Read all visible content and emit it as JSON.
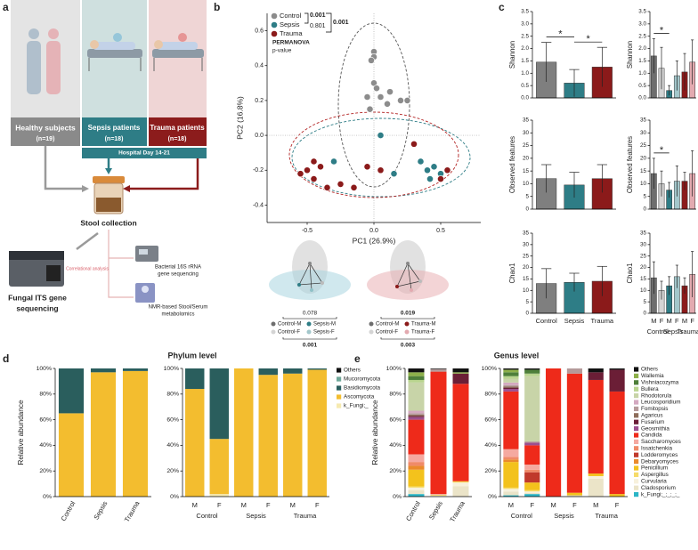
{
  "panel_labels": [
    "a",
    "b",
    "c",
    "d",
    "e"
  ],
  "panel_a": {
    "groups": [
      {
        "name": "Healthy subjects",
        "n": "(n=19)"
      },
      {
        "name": "Sepsis patients",
        "n": "(n=18)"
      },
      {
        "name": "Trauma patients",
        "n": "(n=18)"
      }
    ],
    "timepoint": "Hospital Day 14-21",
    "sample": "Stool collection",
    "method": [
      "Fungal ITS gene",
      "sequencing"
    ],
    "link": "Correlational analysis",
    "other_methods": [
      [
        "Bacterial 16S rRNA",
        "gene sequencing"
      ],
      [
        "NMR-based Stool/Serum",
        "metabolomics"
      ]
    ]
  },
  "panel_b_insets": [
    {
      "groups": [
        "Control-M",
        "Control-F",
        "Sepsis-M",
        "Sepsis-F"
      ],
      "pvalues": [
        "0.078",
        "0.001"
      ]
    },
    {
      "groups": [
        "Control-M",
        "Control-F",
        "Trauma-M",
        "Trauma-F"
      ],
      "pvalues": [
        "0.019",
        "0.003"
      ]
    }
  ],
  "chart_data": [
    {
      "type": "scatter",
      "xlabel": "PC1 (26.9%)",
      "ylabel": "PC2 (16.8%)",
      "xlim": [
        -0.8,
        0.8
      ],
      "ylim": [
        -0.5,
        0.7
      ],
      "xticks": [
        -0.5,
        {
          "value": 0,
          "label": "0.0"
        },
        0.5
      ],
      "yticks": [
        -0.4,
        -0.2,
        {
          "value": 0,
          "label": "0.0"
        },
        0.2,
        0.4,
        0.6
      ],
      "permanova": {
        "label": "PERMANOVA",
        "sublabel": "p-value",
        "pvalues": [
          "0.001",
          "0.801",
          "0.001"
        ]
      },
      "series": [
        {
          "name": "Control",
          "color": "#8c8c8c",
          "x": [
            0,
            0,
            -0.02,
            0,
            0.02,
            -0.05,
            0.05,
            0.12,
            0.1,
            -0.03,
            0.2,
            0.25
          ],
          "y": [
            0.48,
            0.45,
            0.43,
            0.3,
            0.27,
            0.22,
            0.22,
            0.25,
            0.18,
            0.15,
            0.2,
            0.2
          ]
        },
        {
          "name": "Sepsis",
          "color": "#2e7d86",
          "x": [
            0.05,
            0.4,
            0.45,
            0.5,
            0.35,
            0.42,
            -0.3,
            0.15
          ],
          "y": [
            0,
            -0.2,
            -0.18,
            -0.22,
            -0.15,
            -0.25,
            -0.15,
            -0.22
          ]
        },
        {
          "name": "Trauma",
          "color": "#8b1a1a",
          "x": [
            -0.5,
            -0.45,
            -0.55,
            -0.4,
            -0.35,
            -0.25,
            -0.15,
            -0.05,
            0.05,
            0.3,
            0.5,
            0.55,
            -0.45
          ],
          "y": [
            -0.2,
            -0.25,
            -0.22,
            -0.18,
            -0.3,
            -0.28,
            -0.3,
            -0.18,
            -0.2,
            -0.05,
            -0.25,
            -0.2,
            -0.15
          ]
        }
      ]
    },
    {
      "type": "bar",
      "ylabel": "Shannon",
      "values": [
        1.45,
        0.6,
        1.25
      ],
      "errors": [
        0.8,
        0.55,
        0.8
      ],
      "colors": [
        "#7f7f7f",
        "#2e7d86",
        "#8b1a1a"
      ],
      "ylim": [
        0,
        3.5
      ],
      "yticks": [
        {
          "value": 0,
          "label": "0.0"
        },
        0.5,
        {
          "value": 1,
          "label": "1.0"
        },
        1.5,
        {
          "value": 2,
          "label": "2.0"
        },
        2.5,
        {
          "value": 3,
          "label": "3.0"
        },
        3.5
      ],
      "annotations": [
        {
          "text": "*",
          "from": 0,
          "to": 1
        },
        {
          "text": "*",
          "from": 1,
          "to": 2
        }
      ]
    },
    {
      "type": "bar",
      "ylabel": "Shannon",
      "values": [
        1.7,
        1.2,
        0.3,
        0.9,
        1.05,
        1.45
      ],
      "errors": [
        0.7,
        0.85,
        0.2,
        0.6,
        0.75,
        0.9
      ],
      "colors": [
        "#6e6e6e",
        "#d4d4d4",
        "#2e7d86",
        "#a3c7cb",
        "#8b1a1a",
        "#e3aab0"
      ],
      "ylim": [
        0,
        3.5
      ],
      "yticks": [
        {
          "value": 0,
          "label": "0.0"
        },
        0.5,
        {
          "value": 1,
          "label": "1.0"
        },
        1.5,
        {
          "value": 2,
          "label": "2.0"
        },
        2.5,
        {
          "value": 3,
          "label": "3.0"
        },
        3.5
      ],
      "annotations": [
        {
          "text": "*",
          "from": 0,
          "to": 2
        }
      ]
    },
    {
      "type": "bar",
      "ylabel": "Observed features",
      "values": [
        12,
        9.5,
        12
      ],
      "errors": [
        5.5,
        5,
        5.5
      ],
      "colors": [
        "#7f7f7f",
        "#2e7d86",
        "#8b1a1a"
      ],
      "ylim": [
        0,
        35
      ],
      "yticks": [
        0,
        5,
        10,
        15,
        20,
        25,
        30,
        35
      ]
    },
    {
      "type": "bar",
      "ylabel": "Observed features",
      "values": [
        14,
        10,
        7.5,
        11,
        11,
        14
      ],
      "errors": [
        6,
        5,
        3,
        6,
        3.5,
        9
      ],
      "colors": [
        "#6e6e6e",
        "#d4d4d4",
        "#2e7d86",
        "#a3c7cb",
        "#8b1a1a",
        "#e3aab0"
      ],
      "ylim": [
        0,
        35
      ],
      "yticks": [
        0,
        5,
        10,
        15,
        20,
        25,
        30,
        35
      ],
      "annotations": [
        {
          "text": "*",
          "from": 0,
          "to": 2
        }
      ]
    },
    {
      "type": "bar",
      "ylabel": "Chao1",
      "categories": [
        "Control",
        "Sepsis",
        "Trauma"
      ],
      "values": [
        13,
        13.5,
        14
      ],
      "errors": [
        6.5,
        4,
        6.5
      ],
      "colors": [
        "#7f7f7f",
        "#2e7d86",
        "#8b1a1a"
      ],
      "ylim": [
        0,
        35
      ],
      "yticks": [
        0,
        5,
        10,
        15,
        20,
        25,
        30,
        35
      ]
    },
    {
      "type": "bar",
      "ylabel": "Chao1",
      "categories": [
        "M",
        "F",
        "M",
        "F",
        "M",
        "F"
      ],
      "groups": [
        "Control",
        "Sepsis",
        "Trauma"
      ],
      "values": [
        15.5,
        10,
        12,
        16,
        12,
        17
      ],
      "errors": [
        7,
        4,
        4,
        5,
        3.5,
        10
      ],
      "colors": [
        "#6e6e6e",
        "#d4d4d4",
        "#2e7d86",
        "#a3c7cb",
        "#8b1a1a",
        "#e3aab0"
      ],
      "ylim": [
        0,
        35
      ],
      "yticks": [
        0,
        5,
        10,
        15,
        20,
        25,
        30,
        35
      ]
    },
    {
      "type": "stacked_bar",
      "title": "Phylum level",
      "ylabel": "Relative abundance",
      "categories": [
        "Control",
        "Sepsis",
        "Trauma"
      ],
      "ylim": [
        0,
        100
      ],
      "yticks": [
        {
          "value": 0,
          "label": "0%"
        },
        {
          "value": 20,
          "label": "20%"
        },
        {
          "value": 40,
          "label": "40%"
        },
        {
          "value": 60,
          "label": "60%"
        },
        {
          "value": 80,
          "label": "80%"
        },
        {
          "value": 100,
          "label": "100%"
        }
      ],
      "series": [
        {
          "name": "k_Fungi;_",
          "color": "#f6eab0",
          "values": [
            0,
            0,
            0
          ]
        },
        {
          "name": "Ascomycota",
          "color": "#f3bd2f",
          "values": [
            65,
            97,
            98
          ]
        },
        {
          "name": "Basidiomycota",
          "color": "#2a5e5d",
          "values": [
            35,
            3,
            2
          ]
        },
        {
          "name": "Mucoromycota",
          "color": "#6fa89a",
          "values": [
            0,
            0,
            0
          ]
        },
        {
          "name": "Others",
          "color": "#111111",
          "values": [
            0,
            0,
            0
          ]
        }
      ]
    },
    {
      "type": "stacked_bar",
      "categories": [
        "M",
        "F",
        "M",
        "F",
        "M",
        "F"
      ],
      "groups": [
        "Control",
        "Sepsis",
        "Trauma"
      ],
      "ylim": [
        0,
        100
      ],
      "yticks": [
        {
          "value": 0,
          "label": "0%"
        },
        {
          "value": 20,
          "label": "20%"
        },
        {
          "value": 40,
          "label": "40%"
        },
        {
          "value": 60,
          "label": "60%"
        },
        {
          "value": 80,
          "label": "80%"
        },
        {
          "value": 100,
          "label": "100%"
        }
      ],
      "series": [
        {
          "values": [
            0,
            2,
            0,
            0,
            0,
            0
          ]
        },
        {
          "values": [
            84,
            43,
            100,
            95,
            96,
            99
          ]
        },
        {
          "values": [
            16,
            55,
            0,
            5,
            4,
            1
          ]
        },
        {
          "values": [
            0,
            0,
            0,
            0,
            0,
            0
          ]
        },
        {
          "values": [
            0,
            0,
            0,
            0,
            0,
            0
          ]
        }
      ]
    },
    {
      "type": "stacked_bar",
      "title": "Genus level",
      "ylabel": "Relative abundance",
      "categories": [
        "Control",
        "Sepsis",
        "Trauma"
      ],
      "ylim": [
        0,
        100
      ],
      "yticks": [
        {
          "value": 0,
          "label": "0%"
        },
        {
          "value": 20,
          "label": "20%"
        },
        {
          "value": 40,
          "label": "40%"
        },
        {
          "value": 60,
          "label": "60%"
        },
        {
          "value": 80,
          "label": "80%"
        },
        {
          "value": 100,
          "label": "100%"
        }
      ],
      "series": [
        {
          "name": "k_Fungi;_;_;_;_",
          "color": "#2bb5c6",
          "values": [
            2,
            0,
            0
          ]
        },
        {
          "name": "Cladosporium",
          "color": "#ebe4c8",
          "values": [
            3,
            0.5,
            8
          ]
        },
        {
          "name": "Curvularia",
          "color": "#f7f1dc",
          "values": [
            2,
            0.5,
            3
          ]
        },
        {
          "name": "Aspergillus",
          "color": "#f6dc6a",
          "values": [
            1,
            0,
            0.5
          ]
        },
        {
          "name": "Penicillium",
          "color": "#f3c21c",
          "values": [
            13,
            0.5,
            0.5
          ]
        },
        {
          "name": "Debaryomyces",
          "color": "#ea8a2c",
          "values": [
            3,
            0,
            0
          ]
        },
        {
          "name": "Lodderomyces",
          "color": "#c0392b",
          "values": [
            0,
            0,
            0
          ]
        },
        {
          "name": "Issatchenkia",
          "color": "#f08a68",
          "values": [
            3,
            0,
            0
          ]
        },
        {
          "name": "Saccharomyces",
          "color": "#f5a9a0",
          "values": [
            6,
            0.5,
            0
          ]
        },
        {
          "name": "Candida",
          "color": "#ee2a1a",
          "values": [
            27,
            95.5,
            76
          ]
        },
        {
          "name": "Geosmithia",
          "color": "#9c4f8e",
          "values": [
            2,
            0,
            0
          ]
        },
        {
          "name": "Fusarium",
          "color": "#6b1e36",
          "values": [
            1,
            0,
            8
          ]
        },
        {
          "name": "Agaricus",
          "color": "#8e6d5a",
          "values": [
            1,
            0,
            0
          ]
        },
        {
          "name": "Fomitopsis",
          "color": "#b59a9a",
          "values": [
            1,
            2,
            0
          ]
        },
        {
          "name": "Leucosporidium",
          "color": "#d4a9c0",
          "values": [
            2,
            0,
            0
          ]
        },
        {
          "name": "Rhodotorula",
          "color": "#c8d4a8",
          "values": [
            22,
            0,
            0
          ]
        },
        {
          "name": "Bullera",
          "color": "#b9d48e",
          "values": [
            2,
            0,
            0
          ]
        },
        {
          "name": "Vishniacozyma",
          "color": "#4e7f3a",
          "values": [
            3,
            0,
            0
          ]
        },
        {
          "name": "Wallemia",
          "color": "#8db04a",
          "values": [
            3,
            0,
            1
          ]
        },
        {
          "name": "Others",
          "color": "#111111",
          "values": [
            3,
            0.5,
            3
          ]
        }
      ]
    },
    {
      "type": "stacked_bar",
      "categories": [
        "M",
        "F",
        "M",
        "F",
        "M",
        "F"
      ],
      "groups": [
        "Control",
        "Sepsis",
        "Trauma"
      ],
      "ylim": [
        0,
        100
      ],
      "yticks": [
        {
          "value": 0,
          "label": "0%"
        },
        {
          "value": 20,
          "label": "20%"
        },
        {
          "value": 40,
          "label": "40%"
        },
        {
          "value": 60,
          "label": "60%"
        },
        {
          "value": 80,
          "label": "80%"
        },
        {
          "value": 100,
          "label": "100%"
        }
      ],
      "series": [
        {
          "values": [
            1,
            2,
            0,
            0,
            0,
            0
          ]
        },
        {
          "values": [
            3,
            1,
            0,
            1,
            14,
            0
          ]
        },
        {
          "values": [
            2,
            1,
            0,
            0,
            2,
            0
          ]
        },
        {
          "values": [
            1,
            1,
            0,
            0,
            0,
            0
          ]
        },
        {
          "values": [
            20,
            6,
            0,
            2,
            2,
            2
          ]
        },
        {
          "values": [
            2,
            0,
            0,
            0,
            0,
            0
          ]
        },
        {
          "values": [
            0,
            8,
            0,
            0,
            0,
            0
          ]
        },
        {
          "values": [
            2,
            2,
            0,
            0,
            0,
            0
          ]
        },
        {
          "values": [
            6,
            4,
            0,
            0,
            0,
            0
          ]
        },
        {
          "values": [
            45,
            15,
            100,
            93,
            73,
            80
          ]
        },
        {
          "values": [
            2,
            2,
            0,
            0,
            0,
            0
          ]
        },
        {
          "values": [
            1,
            0,
            0,
            0,
            6,
            17
          ]
        },
        {
          "values": [
            1,
            0,
            0,
            0,
            0,
            0
          ]
        },
        {
          "values": [
            1,
            1,
            0,
            4,
            0,
            0
          ]
        },
        {
          "values": [
            2,
            0,
            0,
            0,
            0,
            0
          ]
        },
        {
          "values": [
            3,
            51,
            0,
            0,
            0,
            0
          ]
        },
        {
          "values": [
            2,
            2,
            0,
            0,
            0,
            0
          ]
        },
        {
          "values": [
            3,
            3,
            0,
            0,
            0,
            0
          ]
        },
        {
          "values": [
            2,
            0,
            0,
            0,
            0,
            0
          ]
        },
        {
          "values": [
            1,
            1,
            0,
            0,
            3,
            1
          ]
        }
      ]
    }
  ]
}
